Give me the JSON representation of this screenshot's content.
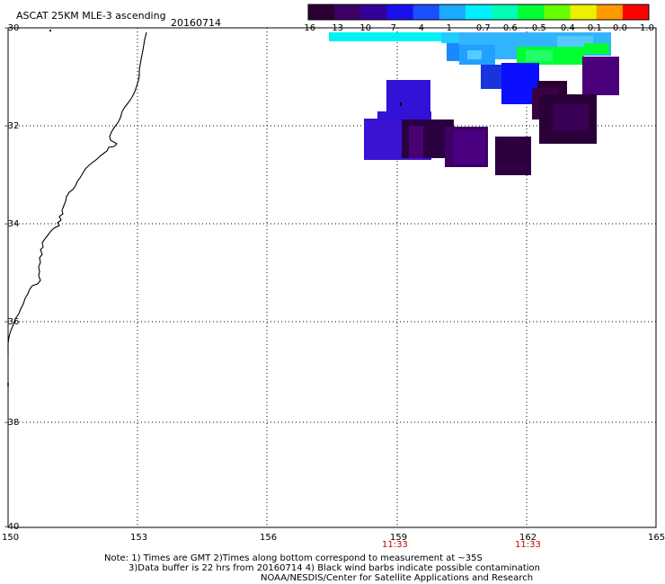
{
  "header": {
    "title": "ASCAT 25KM MLE-3 ascending",
    "date": "20160714"
  },
  "colorbar": {
    "labels": [
      "-16",
      "-13",
      "-10",
      "-7",
      "-4",
      "-1",
      "-0.7",
      "-0.6",
      "-0.5",
      "-0.4",
      "-0.1",
      "0.0",
      "1.0"
    ],
    "colors": [
      "#2a0033",
      "#3d0066",
      "#33009a",
      "#1a10ee",
      "#1a50ff",
      "#1aaaff",
      "#00eeff",
      "#00ffb4",
      "#00ff33",
      "#66ff00",
      "#eeee00",
      "#ff9900",
      "#ff0000"
    ]
  },
  "axes": {
    "x_ticks": [
      "150",
      "153",
      "156",
      "159",
      "162",
      "165"
    ],
    "y_ticks": [
      "-30",
      "-32",
      "-34",
      "-36",
      "-38",
      "-40"
    ],
    "time_labels": [
      "11:33",
      "11:33"
    ],
    "lon_range": [
      150,
      165
    ],
    "lat_range": [
      -40,
      -30
    ]
  },
  "notes": {
    "line1": "Note: 1) Times are GMT 2)Times along bottom correspond to measurement at ~35S",
    "line2": "3)Data buffer is 22 hrs from 20160714 4) Black wind barbs indicate possible contamination",
    "line3": "NOAA/NESDIS/Center for Satellite Applications and Research"
  }
}
